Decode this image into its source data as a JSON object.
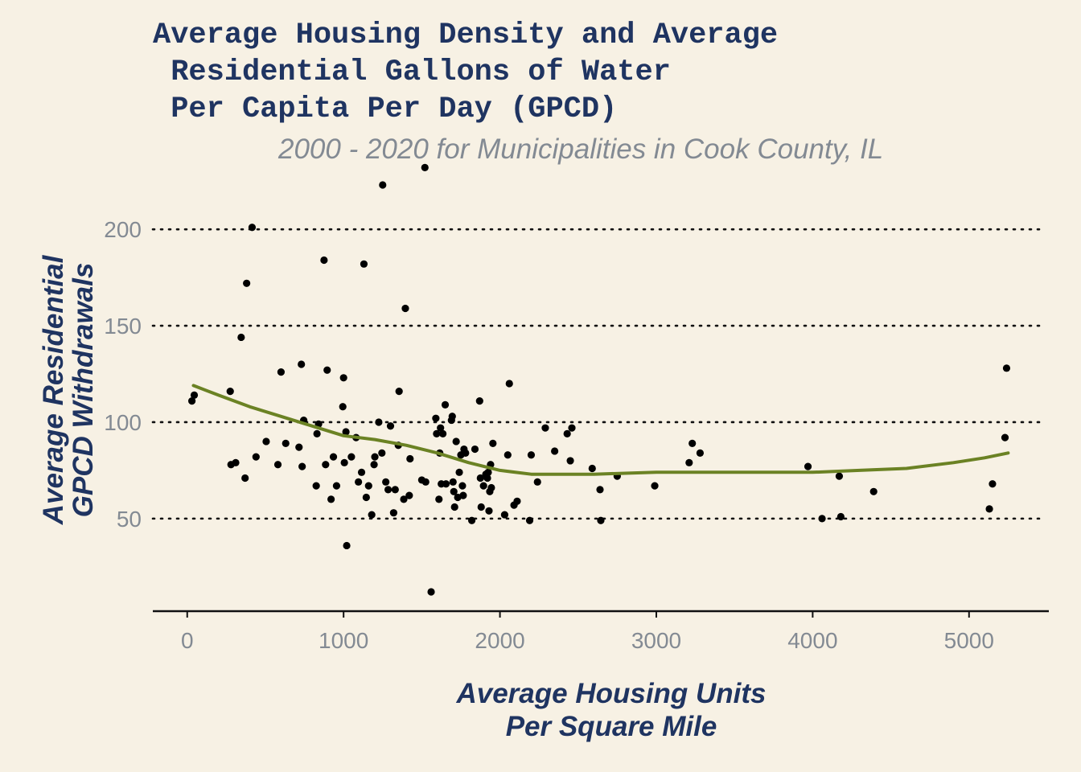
{
  "chart_data": {
    "type": "scatter",
    "title_lines": [
      "Average Housing Density and Average",
      " Residential Gallons of Water",
      " Per Capita Per Day (GPCD)"
    ],
    "subtitle": "2000 - 2020 for Municipalities in Cook County, IL",
    "xlabel_lines": [
      "Average Housing Units",
      "Per Square Mile"
    ],
    "ylabel_lines": [
      "Average Residential",
      "GPCD Withdrawals"
    ],
    "xlim": [
      -220,
      5500
    ],
    "ylim": [
      2,
      233
    ],
    "x_ticks": [
      0,
      1000,
      2000,
      3000,
      4000,
      5000
    ],
    "x_tick_labels": [
      "0",
      "1000",
      "2000",
      "3000",
      "4000",
      "5000"
    ],
    "y_ticks": [
      50,
      100,
      150,
      200
    ],
    "y_tick_labels": [
      "50",
      "100",
      "150",
      "200"
    ],
    "grid": "horizontal dotted",
    "colors": {
      "background": "#f7f1e4",
      "title": "#1f3461",
      "muted": "#838a93",
      "points": "#000000",
      "smooth": "#6b8224"
    },
    "points": [
      [
        30,
        111
      ],
      [
        45,
        114
      ],
      [
        275,
        116
      ],
      [
        280,
        78
      ],
      [
        310,
        79
      ],
      [
        345,
        144
      ],
      [
        370,
        71
      ],
      [
        380,
        172
      ],
      [
        415,
        201
      ],
      [
        440,
        82
      ],
      [
        505,
        90
      ],
      [
        580,
        78
      ],
      [
        600,
        126
      ],
      [
        630,
        89
      ],
      [
        715,
        87
      ],
      [
        730,
        130
      ],
      [
        735,
        77
      ],
      [
        745,
        101
      ],
      [
        825,
        67
      ],
      [
        830,
        94
      ],
      [
        840,
        99
      ],
      [
        875,
        184
      ],
      [
        885,
        78
      ],
      [
        895,
        127
      ],
      [
        920,
        60
      ],
      [
        935,
        82
      ],
      [
        955,
        67
      ],
      [
        995,
        108
      ],
      [
        1000,
        123
      ],
      [
        1005,
        79
      ],
      [
        1015,
        95
      ],
      [
        1020,
        36
      ],
      [
        1050,
        82
      ],
      [
        1080,
        92
      ],
      [
        1095,
        69
      ],
      [
        1115,
        74
      ],
      [
        1130,
        182
      ],
      [
        1145,
        61
      ],
      [
        1160,
        67
      ],
      [
        1180,
        52
      ],
      [
        1195,
        78
      ],
      [
        1200,
        82
      ],
      [
        1225,
        100
      ],
      [
        1245,
        84
      ],
      [
        1250,
        223
      ],
      [
        1270,
        69
      ],
      [
        1285,
        65
      ],
      [
        1300,
        98
      ],
      [
        1320,
        53
      ],
      [
        1330,
        65
      ],
      [
        1350,
        88
      ],
      [
        1355,
        116
      ],
      [
        1385,
        60
      ],
      [
        1395,
        159
      ],
      [
        1420,
        62
      ],
      [
        1425,
        81
      ],
      [
        1500,
        70
      ],
      [
        1520,
        232
      ],
      [
        1525,
        69
      ],
      [
        1560,
        12
      ],
      [
        1590,
        102
      ],
      [
        1595,
        94
      ],
      [
        1610,
        60
      ],
      [
        1615,
        84
      ],
      [
        1620,
        97
      ],
      [
        1625,
        68
      ],
      [
        1635,
        94
      ],
      [
        1650,
        109
      ],
      [
        1655,
        68
      ],
      [
        1690,
        101
      ],
      [
        1695,
        103
      ],
      [
        1700,
        69
      ],
      [
        1705,
        64
      ],
      [
        1710,
        56
      ],
      [
        1720,
        90
      ],
      [
        1730,
        61
      ],
      [
        1740,
        74
      ],
      [
        1750,
        83
      ],
      [
        1760,
        67
      ],
      [
        1765,
        62
      ],
      [
        1770,
        86
      ],
      [
        1780,
        84
      ],
      [
        1820,
        49
      ],
      [
        1840,
        86
      ],
      [
        1870,
        111
      ],
      [
        1875,
        71
      ],
      [
        1880,
        56
      ],
      [
        1895,
        67
      ],
      [
        1910,
        73
      ],
      [
        1920,
        71
      ],
      [
        1925,
        74
      ],
      [
        1930,
        54
      ],
      [
        1935,
        64
      ],
      [
        1940,
        78
      ],
      [
        1945,
        66
      ],
      [
        1955,
        89
      ],
      [
        2030,
        52
      ],
      [
        2050,
        83
      ],
      [
        2060,
        120
      ],
      [
        2090,
        57
      ],
      [
        2110,
        59
      ],
      [
        2190,
        49
      ],
      [
        2200,
        83
      ],
      [
        2240,
        69
      ],
      [
        2290,
        97
      ],
      [
        2350,
        85
      ],
      [
        2430,
        94
      ],
      [
        2450,
        80
      ],
      [
        2460,
        97
      ],
      [
        2590,
        76
      ],
      [
        2640,
        65
      ],
      [
        2645,
        49
      ],
      [
        2750,
        72
      ],
      [
        2990,
        67
      ],
      [
        3210,
        79
      ],
      [
        3230,
        89
      ],
      [
        3280,
        84
      ],
      [
        3970,
        77
      ],
      [
        4060,
        50
      ],
      [
        4170,
        72
      ],
      [
        4180,
        51
      ],
      [
        4390,
        64
      ],
      [
        5130,
        55
      ],
      [
        5150,
        68
      ],
      [
        5230,
        92
      ],
      [
        5240,
        128
      ]
    ],
    "smooth_curve": [
      [
        40,
        119
      ],
      [
        200,
        114
      ],
      [
        400,
        108
      ],
      [
        600,
        103
      ],
      [
        800,
        98
      ],
      [
        1000,
        93
      ],
      [
        1200,
        91
      ],
      [
        1400,
        88
      ],
      [
        1600,
        84
      ],
      [
        1800,
        79
      ],
      [
        2000,
        75
      ],
      [
        2200,
        73
      ],
      [
        2400,
        73
      ],
      [
        2600,
        73
      ],
      [
        2800,
        73.5
      ],
      [
        3000,
        74
      ],
      [
        3300,
        74
      ],
      [
        3600,
        74
      ],
      [
        4000,
        74
      ],
      [
        4300,
        75
      ],
      [
        4600,
        76
      ],
      [
        4900,
        79
      ],
      [
        5100,
        81.5
      ],
      [
        5250,
        84
      ]
    ]
  }
}
